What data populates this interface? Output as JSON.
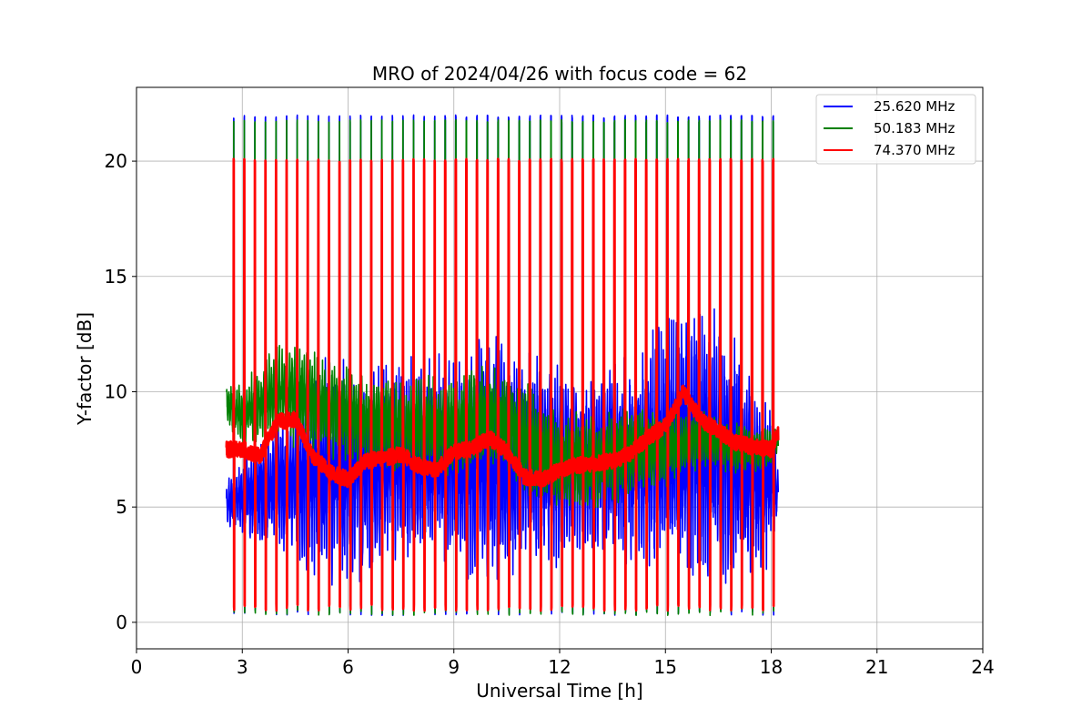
{
  "chart_data": {
    "type": "line",
    "title": "MRO of 2024/04/26 with focus code = 62",
    "xlabel": "Universal Time [h]",
    "ylabel": "Y-factor [dB]",
    "xlim": [
      0,
      24
    ],
    "ylim": [
      -1.15,
      23.2
    ],
    "xticks": [
      0,
      3,
      6,
      9,
      12,
      15,
      18,
      21,
      24
    ],
    "xtick_labels": [
      "0",
      "3",
      "6",
      "9",
      "12",
      "15",
      "18",
      "21",
      "24"
    ],
    "yticks": [
      0,
      5,
      10,
      15,
      20
    ],
    "ytick_labels": [
      "0",
      "5",
      "10",
      "15",
      "20"
    ],
    "grid": true,
    "legend_position": "top-right",
    "time_range": [
      2.55,
      18.2
    ],
    "calibration_period_h": 0.3,
    "series": [
      {
        "name": "25.620 MHz",
        "color": "#0000ff",
        "calibration_high_db": 22.0,
        "calibration_low_db": 0.3,
        "baseline": {
          "x": [
            2.55,
            3.0,
            4.0,
            5.0,
            6.0,
            7.0,
            8.0,
            9.0,
            10.0,
            11.0,
            12.0,
            13.0,
            14.0,
            15.0,
            16.0,
            17.0,
            18.0,
            18.2
          ],
          "y": [
            5.0,
            5.5,
            6.0,
            6.5,
            6.5,
            6.8,
            7.0,
            7.0,
            7.0,
            7.0,
            6.8,
            7.0,
            7.0,
            7.5,
            8.0,
            7.0,
            6.0,
            5.5
          ]
        },
        "spread": {
          "x": [
            2.55,
            3.0,
            4.0,
            5.0,
            6.0,
            7.0,
            8.0,
            9.0,
            10.0,
            11.0,
            12.0,
            13.0,
            14.0,
            15.0,
            16.0,
            17.0,
            18.0,
            18.2
          ],
          "y": [
            1.0,
            1.5,
            2.5,
            4.0,
            4.5,
            4.0,
            4.0,
            4.0,
            5.0,
            4.0,
            4.0,
            3.5,
            4.0,
            5.0,
            6.0,
            4.5,
            3.0,
            1.0
          ]
        }
      },
      {
        "name": "50.183 MHz",
        "color": "#008000",
        "calibration_high_db": 21.8,
        "calibration_low_db": 0.3,
        "baseline": {
          "x": [
            2.55,
            3.0,
            4.0,
            5.0,
            6.0,
            7.0,
            8.0,
            9.0,
            10.0,
            11.0,
            12.0,
            13.0,
            14.0,
            15.0,
            16.0,
            17.0,
            18.0,
            18.2
          ],
          "y": [
            9.5,
            9.0,
            10.0,
            9.5,
            9.0,
            8.5,
            8.5,
            8.5,
            9.0,
            8.0,
            7.0,
            7.0,
            7.5,
            7.5,
            8.0,
            7.5,
            7.5,
            8.0
          ]
        },
        "spread": {
          "x": [
            2.55,
            3.0,
            4.0,
            5.0,
            6.0,
            7.0,
            8.0,
            9.0,
            10.0,
            11.0,
            12.0,
            13.0,
            14.0,
            15.0,
            16.0,
            17.0,
            18.0,
            18.2
          ],
          "y": [
            0.8,
            1.2,
            1.8,
            2.0,
            1.8,
            1.8,
            1.8,
            2.0,
            2.2,
            2.2,
            2.0,
            1.8,
            1.8,
            1.5,
            1.2,
            1.0,
            0.8,
            0.6
          ]
        }
      },
      {
        "name": "74.370 MHz",
        "color": "#ff0000",
        "calibration_high_db": 20.1,
        "calibration_low_db": 0.5,
        "baseline": {
          "x": [
            2.55,
            3.0,
            3.5,
            4.0,
            4.5,
            5.0,
            5.5,
            6.0,
            6.5,
            7.0,
            7.5,
            8.0,
            8.5,
            9.0,
            9.5,
            10.0,
            10.5,
            11.0,
            11.5,
            12.0,
            12.5,
            13.0,
            13.5,
            14.0,
            14.5,
            15.0,
            15.5,
            16.0,
            16.5,
            17.0,
            17.5,
            18.0,
            18.2
          ],
          "y": [
            7.5,
            7.5,
            7.2,
            8.7,
            8.8,
            7.2,
            6.5,
            6.2,
            7.0,
            7.1,
            7.3,
            6.8,
            6.6,
            7.4,
            7.5,
            8.0,
            7.4,
            6.3,
            6.2,
            6.6,
            6.8,
            6.9,
            7.0,
            7.3,
            8.0,
            8.5,
            10.0,
            8.8,
            8.3,
            7.8,
            7.6,
            7.5,
            8.2
          ]
        },
        "spread": {
          "x": [
            2.55,
            18.2
          ],
          "y": [
            0.35,
            0.35
          ]
        }
      }
    ]
  }
}
